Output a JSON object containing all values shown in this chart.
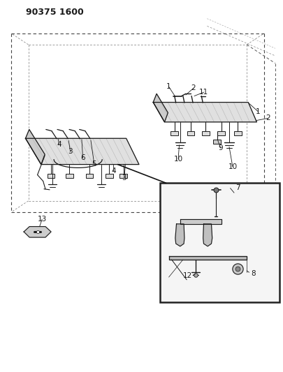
{
  "title": "90375 1600",
  "title_fontsize": 9,
  "title_fontweight": "bold",
  "bg_color": "#ffffff",
  "line_color": "#1a1a1a",
  "label_fontsize": 7.5,
  "fig_width": 4.06,
  "fig_height": 5.33,
  "dpi": 100
}
